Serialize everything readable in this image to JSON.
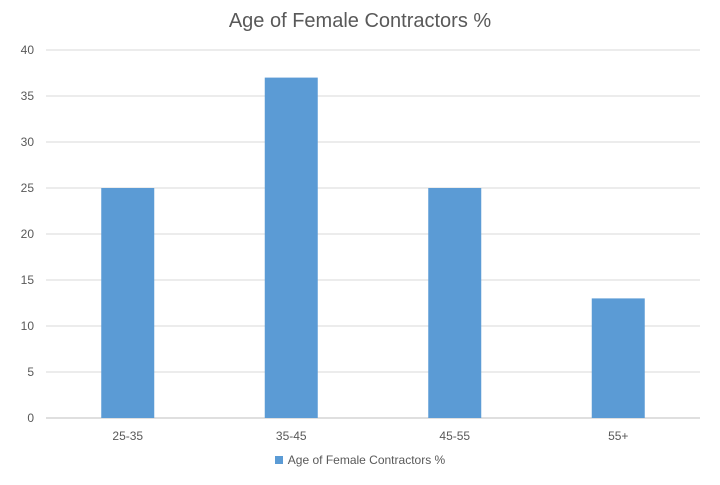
{
  "chart_data": {
    "type": "bar",
    "title": "Age of Female Contractors %",
    "categories": [
      "25-35",
      "35-45",
      "45-55",
      "55+"
    ],
    "series": [
      {
        "name": "Age of Female Contractors %",
        "values": [
          25,
          37,
          25,
          13
        ],
        "color": "#5B9BD5"
      }
    ],
    "ylim": [
      0,
      40
    ],
    "yticks": [
      0,
      5,
      10,
      15,
      20,
      25,
      30,
      35,
      40
    ],
    "grid": true,
    "legend": "bottom",
    "xlabel": "",
    "ylabel": ""
  }
}
